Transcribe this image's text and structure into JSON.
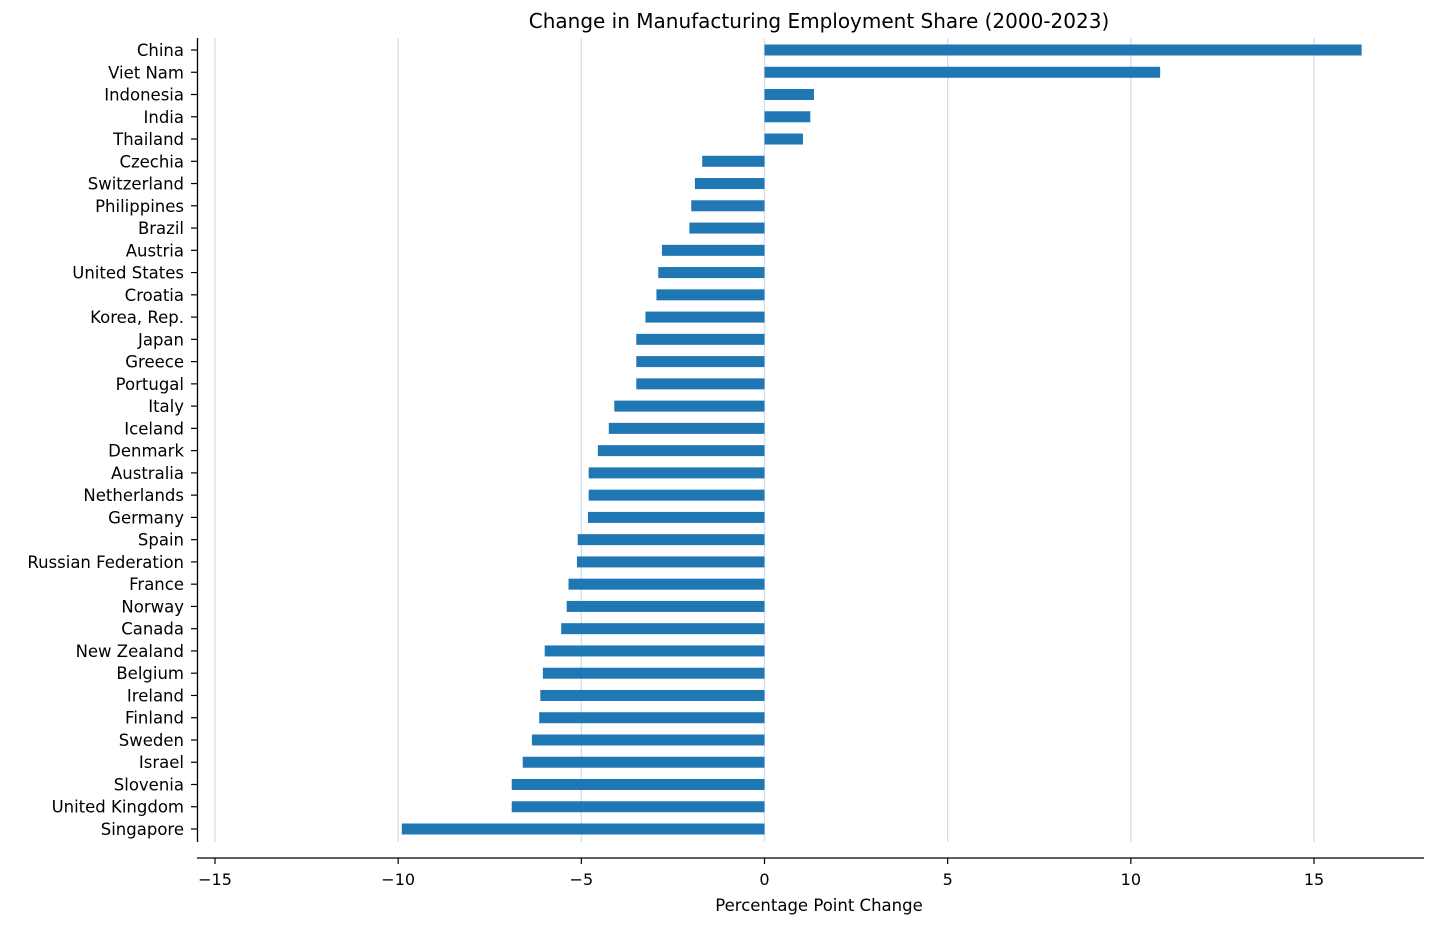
{
  "chart_data": {
    "type": "bar",
    "orientation": "horizontal",
    "title": "Change in Manufacturing Employment Share (2000-2023)",
    "xlabel": "Percentage Point Change",
    "ylabel": "",
    "xlim": [
      -15,
      18
    ],
    "xticks": [
      -15,
      -10,
      -5,
      0,
      5,
      10,
      15
    ],
    "xtick_labels": [
      "−15",
      "−10",
      "−5",
      "0",
      "5",
      "10",
      "15"
    ],
    "grid": "vertical",
    "bar_color": "#1f77b4",
    "grid_color": "#cfe0ec",
    "categories": [
      "China",
      "Viet Nam",
      "Indonesia",
      "India",
      "Thailand",
      "Czechia",
      "Switzerland",
      "Philippines",
      "Brazil",
      "Austria",
      "United States",
      "Croatia",
      "Korea, Rep.",
      "Japan",
      "Greece",
      "Portugal",
      "Italy",
      "Iceland",
      "Denmark",
      "Australia",
      "Netherlands",
      "Germany",
      "Spain",
      "Russian Federation",
      "France",
      "Norway",
      "Canada",
      "New Zealand",
      "Belgium",
      "Ireland",
      "Finland",
      "Sweden",
      "Israel",
      "Slovenia",
      "United Kingdom",
      "Singapore"
    ],
    "values": [
      16.3,
      10.8,
      1.35,
      1.25,
      1.05,
      -1.7,
      -1.9,
      -2.0,
      -2.05,
      -2.8,
      -2.9,
      -2.95,
      -3.25,
      -3.5,
      -3.5,
      -3.5,
      -4.1,
      -4.25,
      -4.55,
      -4.8,
      -4.8,
      -4.82,
      -5.1,
      -5.12,
      -5.35,
      -5.4,
      -5.55,
      -6.0,
      -6.05,
      -6.12,
      -6.15,
      -6.35,
      -6.6,
      -6.9,
      -6.9,
      -9.9
    ]
  }
}
